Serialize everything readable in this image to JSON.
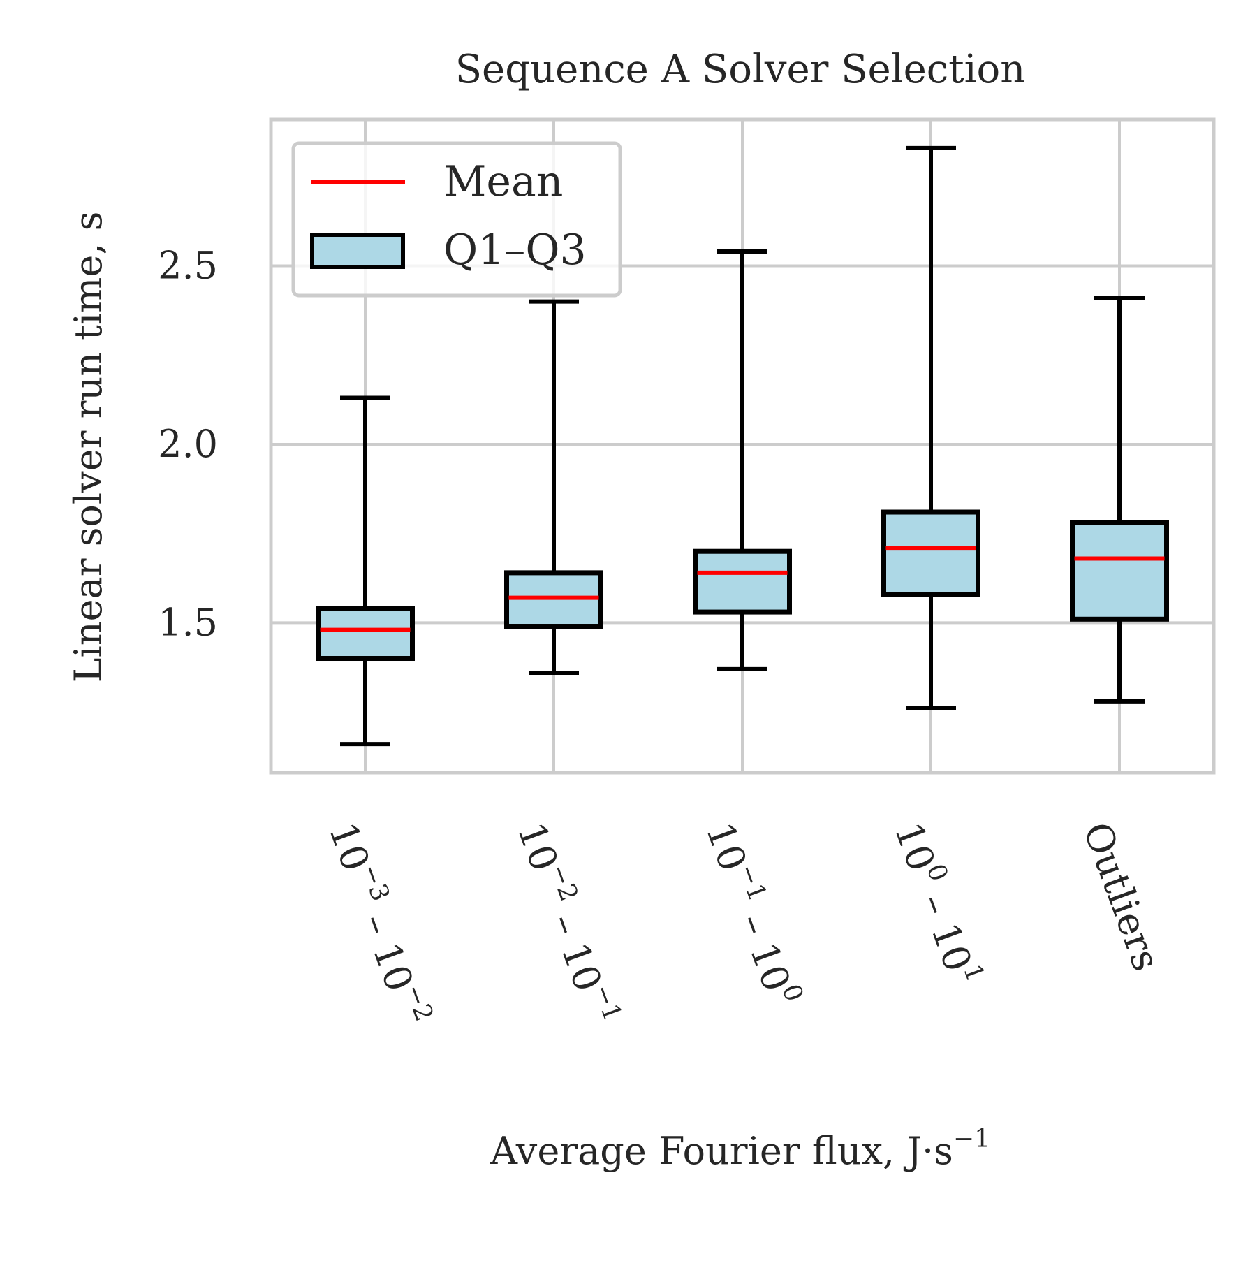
{
  "chart_data": {
    "type": "box",
    "title": "Sequence A Solver Selection",
    "xlabel": {
      "text": "Average Fourier flux, J·s",
      "sup": "−1"
    },
    "ylabel": "Linear solver run time, s",
    "ylim": [
      1.08,
      2.91
    ],
    "yticks": [
      1.5,
      2.0,
      2.5
    ],
    "ytick_labels": [
      "1.5",
      "2.0",
      "2.5"
    ],
    "grid": true,
    "legend": {
      "placement": "top-left",
      "entries": [
        {
          "label": "Mean",
          "kind": "line",
          "color": "#ff0000"
        },
        {
          "label": "Q1–Q3",
          "kind": "box",
          "color": "#add8e6"
        }
      ]
    },
    "categories": [
      {
        "parts": [
          [
            "10",
            ""
          ],
          [
            "−3",
            "sup"
          ],
          [
            " – 10",
            ""
          ],
          [
            "−2",
            "sup"
          ]
        ]
      },
      {
        "parts": [
          [
            "10",
            ""
          ],
          [
            "−2",
            "sup"
          ],
          [
            " – 10",
            ""
          ],
          [
            "−1",
            "sup"
          ]
        ]
      },
      {
        "parts": [
          [
            "10",
            ""
          ],
          [
            "−1",
            "sup"
          ],
          [
            " – 10",
            ""
          ],
          [
            "0",
            "sup"
          ]
        ]
      },
      {
        "parts": [
          [
            "10",
            ""
          ],
          [
            "0",
            "sup"
          ],
          [
            " – 10",
            ""
          ],
          [
            "1",
            "sup"
          ]
        ]
      },
      {
        "parts": [
          [
            "Outliers",
            ""
          ]
        ]
      }
    ],
    "boxes": [
      {
        "whisker_low": 1.16,
        "q1": 1.4,
        "mean": 1.48,
        "q3": 1.54,
        "whisker_high": 2.13
      },
      {
        "whisker_low": 1.36,
        "q1": 1.49,
        "mean": 1.57,
        "q3": 1.64,
        "whisker_high": 2.4
      },
      {
        "whisker_low": 1.37,
        "q1": 1.53,
        "mean": 1.64,
        "q3": 1.7,
        "whisker_high": 2.54
      },
      {
        "whisker_low": 1.26,
        "q1": 1.58,
        "mean": 1.71,
        "q3": 1.81,
        "whisker_high": 2.83
      },
      {
        "whisker_low": 1.28,
        "q1": 1.51,
        "mean": 1.68,
        "q3": 1.78,
        "whisker_high": 2.41
      }
    ],
    "colors": {
      "box_fill": "#add8e6",
      "box_edge": "#000000",
      "mean_line": "#ff0000",
      "grid": "#cccccc"
    }
  }
}
